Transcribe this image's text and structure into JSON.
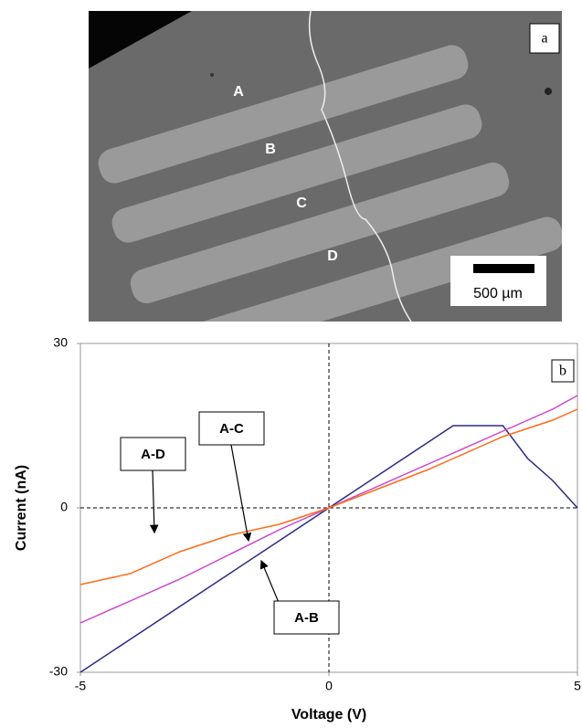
{
  "image": {
    "panel_label": "a",
    "stripe_labels": [
      "A",
      "B",
      "C",
      "D"
    ],
    "scale_bar": "500 µm"
  },
  "chart_data": {
    "type": "line",
    "panel_label": "b",
    "x_label": "Voltage (V)",
    "y_label": "Current (nA)",
    "xlim": [
      -5,
      5
    ],
    "ylim": [
      -30,
      30
    ],
    "xticks": [
      -5,
      0,
      5
    ],
    "yticks": [
      -30,
      0,
      30
    ],
    "zero_lines": true,
    "x": [
      -5,
      -4,
      -3,
      -2,
      -1,
      0,
      1,
      2,
      2.5,
      3,
      3.5,
      4,
      4.5,
      5
    ],
    "series": [
      {
        "name": "A-B",
        "color": "#2b2b86",
        "values": [
          -30,
          -24,
          -18,
          -12,
          -6,
          0,
          6,
          12,
          15,
          15,
          15,
          9,
          5,
          0
        ]
      },
      {
        "name": "A-C",
        "color": "#cc44cc",
        "values": [
          -21,
          -17,
          -13,
          -8.5,
          -4,
          0,
          4,
          8,
          10,
          12,
          14,
          16,
          18,
          20.5
        ]
      },
      {
        "name": "A-D",
        "color": "#ff6a1a",
        "values": [
          -14,
          -12,
          -8,
          -5,
          -3,
          0,
          3.5,
          7,
          9,
          11,
          13,
          14.5,
          16,
          18
        ]
      }
    ]
  }
}
